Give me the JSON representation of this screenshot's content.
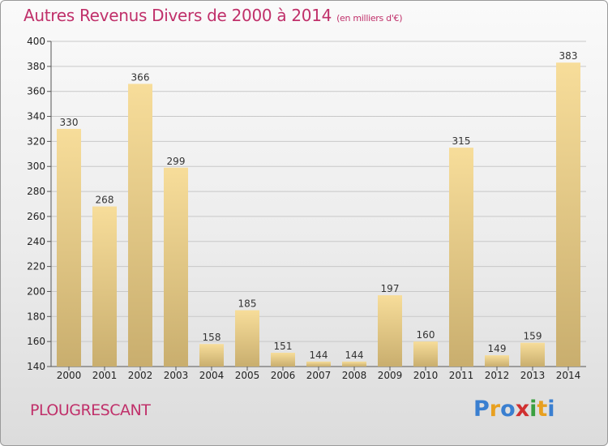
{
  "header": {
    "title": "Autres Revenus Divers de 2000 à 2014",
    "unit": "(en milliers d'€)"
  },
  "footer": {
    "commune": "PLOUGRESCANT",
    "logo": "Proxiti"
  },
  "colors": {
    "title": "#c0306a",
    "bar_light": "#f7dd9a",
    "bar_dark": "#c9ae6e",
    "grid": "#c8c8c8"
  },
  "chart_data": {
    "type": "bar",
    "title": "Autres Revenus Divers de 2000 à 2014",
    "subtitle": "(en milliers d'€)",
    "xlabel": "",
    "ylabel": "",
    "categories": [
      "2000",
      "2001",
      "2002",
      "2003",
      "2004",
      "2005",
      "2006",
      "2007",
      "2008",
      "2009",
      "2010",
      "2011",
      "2012",
      "2013",
      "2014"
    ],
    "values": [
      330,
      268,
      366,
      299,
      158,
      185,
      151,
      144,
      144,
      197,
      160,
      315,
      149,
      159,
      383
    ],
    "ylim": [
      140,
      400
    ],
    "yticks": [
      140,
      160,
      180,
      200,
      220,
      240,
      260,
      280,
      300,
      320,
      340,
      360,
      380,
      400
    ],
    "grid": true,
    "legend": "none"
  }
}
